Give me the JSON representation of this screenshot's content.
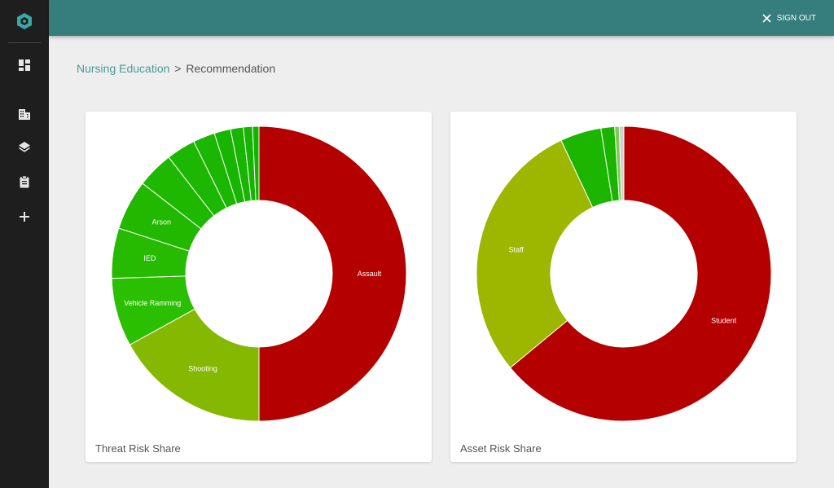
{
  "header": {
    "signout_label": "SIGN OUT"
  },
  "sidebar": {
    "items": [
      {
        "icon": "dashboard-icon"
      },
      {
        "icon": "building-icon"
      },
      {
        "icon": "layers-icon"
      },
      {
        "icon": "clipboard-icon"
      },
      {
        "icon": "plus-icon"
      }
    ]
  },
  "breadcrumb": {
    "parent": "Nursing Education",
    "separator": ">",
    "current": "Recommendation"
  },
  "colors": {
    "topbar": "#367d7d",
    "sidebar": "#1e1e1e",
    "accent_link": "#4a9c92"
  },
  "chart_data": [
    {
      "type": "pie",
      "donut": true,
      "title": "Threat Risk Share",
      "slices": [
        {
          "label": "Assault",
          "value": 50.0,
          "color": "#b50000"
        },
        {
          "label": "Shooting",
          "value": 17.0,
          "color": "#85b800"
        },
        {
          "label": "Vehicle Ramming",
          "value": 7.5,
          "color": "#2abf00"
        },
        {
          "label": "IED",
          "value": 5.5,
          "color": "#26bb00"
        },
        {
          "label": "Arson",
          "value": 5.5,
          "color": "#22b800"
        },
        {
          "label": "",
          "value": 4.0,
          "color": "#1fb800"
        },
        {
          "label": "",
          "value": 3.2,
          "color": "#1cb700"
        },
        {
          "label": "",
          "value": 2.4,
          "color": "#1ab600"
        },
        {
          "label": "",
          "value": 1.8,
          "color": "#18b500"
        },
        {
          "label": "",
          "value": 1.4,
          "color": "#17b400"
        },
        {
          "label": "",
          "value": 1.0,
          "color": "#16b300"
        },
        {
          "label": "",
          "value": 0.7,
          "color": "#15b300"
        }
      ]
    },
    {
      "type": "pie",
      "donut": true,
      "title": "Asset Risk Share",
      "slices": [
        {
          "label": "Student",
          "value": 64.0,
          "color": "#b50000"
        },
        {
          "label": "Staff",
          "value": 29.0,
          "color": "#9db600"
        },
        {
          "label": "",
          "value": 4.5,
          "color": "#1cb500"
        },
        {
          "label": "",
          "value": 1.5,
          "color": "#1ab300"
        },
        {
          "label": "",
          "value": 0.5,
          "color": "#7acc55"
        },
        {
          "label": "",
          "value": 0.5,
          "color": "#cfcfcf"
        }
      ]
    }
  ]
}
